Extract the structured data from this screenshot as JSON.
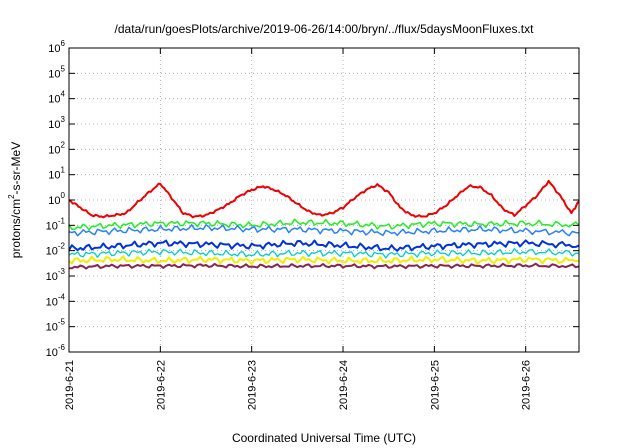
{
  "chart_data": {
    "type": "line",
    "title": "/data/run/goesPlots/archive/2019-06-26/14:00/bryn/../flux/5daysMoonFluxes.txt",
    "xlabel": "Coordinated Universal Time (UTC)",
    "ylabel": {
      "prefix": "protons/cm",
      "sup": "2",
      "suffix": "-s-sr-MeV"
    },
    "y_scale": "log",
    "ylim": [
      1e-06,
      1000000.0
    ],
    "y_ticks": [
      {
        "value": 1e-06,
        "base": "10",
        "exp": "-6"
      },
      {
        "value": 1e-05,
        "base": "10",
        "exp": "-5"
      },
      {
        "value": 0.0001,
        "base": "10",
        "exp": "-4"
      },
      {
        "value": 0.001,
        "base": "10",
        "exp": "-3"
      },
      {
        "value": 0.01,
        "base": "10",
        "exp": "-2"
      },
      {
        "value": 0.1,
        "base": "10",
        "exp": "-1"
      },
      {
        "value": 1,
        "base": "10",
        "exp": "0"
      },
      {
        "value": 10,
        "base": "10",
        "exp": "1"
      },
      {
        "value": 100,
        "base": "10",
        "exp": "2"
      },
      {
        "value": 1000,
        "base": "10",
        "exp": "3"
      },
      {
        "value": 10000,
        "base": "10",
        "exp": "4"
      },
      {
        "value": 100000,
        "base": "10",
        "exp": "5"
      },
      {
        "value": 1000000,
        "base": "10",
        "exp": "6"
      }
    ],
    "x_range": [
      "2019-06-21T00:00",
      "2019-06-26T14:00"
    ],
    "x_ticks": [
      "2019-6-21",
      "2019-6-22",
      "2019-6-23",
      "2019-6-24",
      "2019-6-25",
      "2019-6-26"
    ],
    "grid": true,
    "series": [
      {
        "color": "#ee0000",
        "width": 2.0,
        "x": [
          "2019-06-21T00:00",
          "2019-06-21T03:00",
          "2019-06-21T06:00",
          "2019-06-21T09:00",
          "2019-06-21T12:00",
          "2019-06-21T15:00",
          "2019-06-21T18:00",
          "2019-06-21T21:00",
          "2019-06-22T00:00",
          "2019-06-22T03:00",
          "2019-06-22T06:00",
          "2019-06-22T09:00",
          "2019-06-22T12:00",
          "2019-06-22T15:00",
          "2019-06-22T18:00",
          "2019-06-22T21:00",
          "2019-06-23T00:00",
          "2019-06-23T03:00",
          "2019-06-23T06:00",
          "2019-06-23T09:00",
          "2019-06-23T12:00",
          "2019-06-23T15:00",
          "2019-06-23T18:00",
          "2019-06-23T21:00",
          "2019-06-24T00:00",
          "2019-06-24T03:00",
          "2019-06-24T06:00",
          "2019-06-24T09:00",
          "2019-06-24T12:00",
          "2019-06-24T15:00",
          "2019-06-24T18:00",
          "2019-06-24T21:00",
          "2019-06-25T00:00",
          "2019-06-25T03:00",
          "2019-06-25T06:00",
          "2019-06-25T09:00",
          "2019-06-25T12:00",
          "2019-06-25T15:00",
          "2019-06-25T18:00",
          "2019-06-25T21:00",
          "2019-06-26T00:00",
          "2019-06-26T03:00",
          "2019-06-26T06:00",
          "2019-06-26T09:00",
          "2019-06-26T12:00",
          "2019-06-26T14:00"
        ],
        "values": [
          1.0,
          0.5,
          0.25,
          0.22,
          0.25,
          0.3,
          0.8,
          2.0,
          4.5,
          1.2,
          0.3,
          0.22,
          0.25,
          0.4,
          0.7,
          1.5,
          2.5,
          3.5,
          2.5,
          1.5,
          0.7,
          0.35,
          0.25,
          0.3,
          0.5,
          1.2,
          2.5,
          4.0,
          2.0,
          0.5,
          0.25,
          0.22,
          0.3,
          0.6,
          1.5,
          3.5,
          3.2,
          1.5,
          0.45,
          0.25,
          0.6,
          1.5,
          5.5,
          1.5,
          0.3,
          0.9
        ]
      },
      {
        "color": "#22ee22",
        "width": 1.5,
        "x": [
          "2019-06-21T00:00",
          "2019-06-21T12:00",
          "2019-06-22T00:00",
          "2019-06-22T12:00",
          "2019-06-23T00:00",
          "2019-06-23T12:00",
          "2019-06-24T00:00",
          "2019-06-24T12:00",
          "2019-06-25T00:00",
          "2019-06-25T12:00",
          "2019-06-26T00:00",
          "2019-06-26T14:00"
        ],
        "values": [
          0.08,
          0.1,
          0.12,
          0.12,
          0.1,
          0.13,
          0.12,
          0.09,
          0.12,
          0.11,
          0.12,
          0.1
        ]
      },
      {
        "color": "#2a7fff",
        "width": 1.5,
        "x": [
          "2019-06-21T00:00",
          "2019-06-21T12:00",
          "2019-06-22T00:00",
          "2019-06-22T12:00",
          "2019-06-23T00:00",
          "2019-06-23T12:00",
          "2019-06-24T00:00",
          "2019-06-24T12:00",
          "2019-06-25T00:00",
          "2019-06-25T12:00",
          "2019-06-26T00:00",
          "2019-06-26T14:00"
        ],
        "values": [
          0.05,
          0.06,
          0.07,
          0.08,
          0.07,
          0.07,
          0.06,
          0.05,
          0.06,
          0.07,
          0.06,
          0.05
        ]
      },
      {
        "color": "#0033dd",
        "width": 2.0,
        "x": [
          "2019-06-21T00:00",
          "2019-06-21T12:00",
          "2019-06-22T00:00",
          "2019-06-22T12:00",
          "2019-06-23T00:00",
          "2019-06-23T12:00",
          "2019-06-24T00:00",
          "2019-06-24T12:00",
          "2019-06-25T00:00",
          "2019-06-25T12:00",
          "2019-06-26T00:00",
          "2019-06-26T14:00"
        ],
        "values": [
          0.012,
          0.015,
          0.02,
          0.018,
          0.015,
          0.02,
          0.016,
          0.012,
          0.015,
          0.018,
          0.02,
          0.016
        ]
      },
      {
        "color": "#00cccc",
        "width": 1.3,
        "x": [
          "2019-06-21T00:00",
          "2019-06-21T12:00",
          "2019-06-22T00:00",
          "2019-06-22T12:00",
          "2019-06-23T00:00",
          "2019-06-23T12:00",
          "2019-06-24T00:00",
          "2019-06-24T12:00",
          "2019-06-25T00:00",
          "2019-06-25T12:00",
          "2019-06-26T00:00",
          "2019-06-26T14:00"
        ],
        "values": [
          0.007,
          0.008,
          0.009,
          0.008,
          0.007,
          0.008,
          0.008,
          0.007,
          0.008,
          0.008,
          0.009,
          0.008
        ]
      },
      {
        "color": "#eeee00",
        "width": 2.0,
        "x": [
          "2019-06-21T00:00",
          "2019-06-21T12:00",
          "2019-06-22T00:00",
          "2019-06-22T12:00",
          "2019-06-23T00:00",
          "2019-06-23T12:00",
          "2019-06-24T00:00",
          "2019-06-24T12:00",
          "2019-06-25T00:00",
          "2019-06-25T12:00",
          "2019-06-26T00:00",
          "2019-06-26T14:00"
        ],
        "values": [
          0.004,
          0.0045,
          0.004,
          0.0045,
          0.004,
          0.0045,
          0.004,
          0.004,
          0.0045,
          0.004,
          0.0045,
          0.004
        ]
      },
      {
        "color": "#8b2252",
        "width": 2.0,
        "x": [
          "2019-06-21T00:00",
          "2019-06-21T12:00",
          "2019-06-22T00:00",
          "2019-06-22T12:00",
          "2019-06-23T00:00",
          "2019-06-23T12:00",
          "2019-06-24T00:00",
          "2019-06-24T12:00",
          "2019-06-25T00:00",
          "2019-06-25T12:00",
          "2019-06-26T00:00",
          "2019-06-26T14:00"
        ],
        "values": [
          0.0022,
          0.0025,
          0.0025,
          0.0026,
          0.0024,
          0.0025,
          0.0025,
          0.0024,
          0.0025,
          0.0025,
          0.0026,
          0.0024
        ]
      }
    ]
  }
}
